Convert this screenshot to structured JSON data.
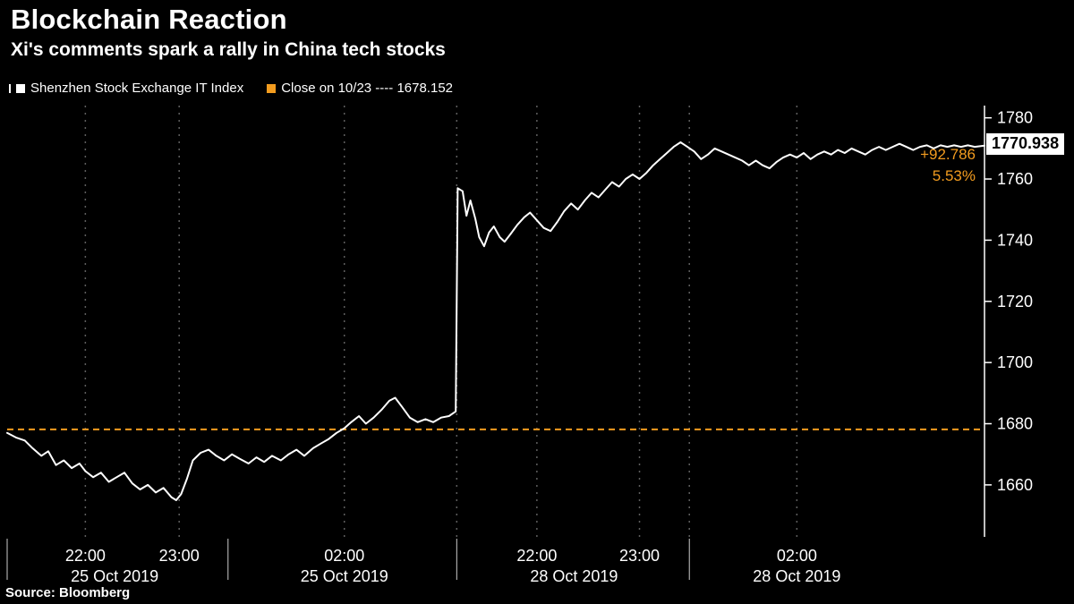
{
  "header": {
    "title": "Blockchain Reaction",
    "subtitle": "Xi's comments spark a rally in China tech stocks"
  },
  "legend": [
    {
      "label": "Shenzhen Stock Exchange IT Index",
      "color": "#ffffff"
    },
    {
      "label": "Close on 10/23 ---- 1678.152",
      "color": "#f39c1f"
    }
  ],
  "annotations": {
    "last_price": "1770.938",
    "change_abs": "+92.786",
    "change_pct": "5.53%"
  },
  "source": "Source: Bloomberg",
  "chart_data": {
    "type": "line",
    "title": "Blockchain Reaction",
    "subtitle": "Xi's comments spark a rally in China tech stocks",
    "series_name": "Shenzhen Stock Exchange IT Index",
    "last_value": 1770.938,
    "change_abs": 92.786,
    "change_pct": 5.53,
    "reference_line": {
      "label": "Close on 10/23",
      "value": 1678.152
    },
    "ylim": [
      1643,
      1784
    ],
    "yticks": [
      1660,
      1680,
      1700,
      1720,
      1740,
      1760,
      1780
    ],
    "grid": true,
    "legend_position": "top-left",
    "colors": {
      "line": "#ffffff",
      "reference": "#f39c1f",
      "grid": "#5f5f5f",
      "axis": "#ffffff"
    },
    "x_axis": {
      "gridlines": [
        8.0,
        17.6,
        34.5,
        46.0,
        54.2,
        64.7,
        69.8,
        80.8
      ],
      "separators": [
        0,
        22.6,
        46.0,
        69.8
      ],
      "time_labels": [
        {
          "x": 8.0,
          "label": "22:00"
        },
        {
          "x": 17.6,
          "label": "23:00"
        },
        {
          "x": 34.5,
          "label": "02:00"
        },
        {
          "x": 54.2,
          "label": "22:00"
        },
        {
          "x": 64.7,
          "label": "23:00"
        },
        {
          "x": 80.8,
          "label": "02:00"
        }
      ],
      "date_labels": [
        {
          "x": 11.0,
          "label": "25 Oct 2019"
        },
        {
          "x": 34.5,
          "label": "25 Oct 2019"
        },
        {
          "x": 58.0,
          "label": "28 Oct 2019"
        },
        {
          "x": 80.8,
          "label": "28 Oct 2019"
        }
      ]
    },
    "points": [
      [
        0,
        1677
      ],
      [
        0.9,
        1675.5
      ],
      [
        1.8,
        1674.5
      ],
      [
        2.6,
        1672
      ],
      [
        3.5,
        1669.5
      ],
      [
        4.2,
        1671
      ],
      [
        5,
        1666.5
      ],
      [
        5.8,
        1668
      ],
      [
        6.6,
        1665.5
      ],
      [
        7.4,
        1667
      ],
      [
        8,
        1664.5
      ],
      [
        8.8,
        1662.5
      ],
      [
        9.6,
        1664
      ],
      [
        10.4,
        1661
      ],
      [
        11.2,
        1662.5
      ],
      [
        12,
        1664
      ],
      [
        12.8,
        1660.5
      ],
      [
        13.6,
        1658.5
      ],
      [
        14.4,
        1660
      ],
      [
        15.2,
        1657.5
      ],
      [
        16,
        1659
      ],
      [
        16.8,
        1656
      ],
      [
        17.3,
        1655
      ],
      [
        17.8,
        1657
      ],
      [
        18.4,
        1662
      ],
      [
        19,
        1668
      ],
      [
        19.8,
        1670.5
      ],
      [
        20.6,
        1671.5
      ],
      [
        21.4,
        1669.5
      ],
      [
        22.2,
        1668
      ],
      [
        23,
        1670
      ],
      [
        23.8,
        1668.5
      ],
      [
        24.7,
        1667
      ],
      [
        25.5,
        1669
      ],
      [
        26.3,
        1667.5
      ],
      [
        27.1,
        1669.5
      ],
      [
        28,
        1668
      ],
      [
        28.8,
        1670
      ],
      [
        29.6,
        1671.5
      ],
      [
        30.4,
        1669.5
      ],
      [
        31.3,
        1672
      ],
      [
        32.1,
        1673.5
      ],
      [
        32.9,
        1675
      ],
      [
        33.7,
        1677
      ],
      [
        34.5,
        1678.5
      ],
      [
        35.2,
        1680.5
      ],
      [
        36,
        1682.5
      ],
      [
        36.7,
        1680
      ],
      [
        37.5,
        1682
      ],
      [
        38.3,
        1684.5
      ],
      [
        39.1,
        1687.5
      ],
      [
        39.7,
        1688.5
      ],
      [
        40.4,
        1685.5
      ],
      [
        41.2,
        1682
      ],
      [
        42,
        1680.5
      ],
      [
        42.8,
        1681.5
      ],
      [
        43.6,
        1680.5
      ],
      [
        44.4,
        1682
      ],
      [
        45.2,
        1682.5
      ],
      [
        45.9,
        1684
      ],
      [
        46.1,
        1757
      ],
      [
        46.6,
        1756
      ],
      [
        47,
        1748
      ],
      [
        47.4,
        1753
      ],
      [
        47.9,
        1747
      ],
      [
        48.3,
        1741
      ],
      [
        48.8,
        1738
      ],
      [
        49.3,
        1742.5
      ],
      [
        49.8,
        1744.5
      ],
      [
        50.4,
        1741
      ],
      [
        50.9,
        1739.5
      ],
      [
        51.5,
        1742
      ],
      [
        52.2,
        1745
      ],
      [
        52.9,
        1747.5
      ],
      [
        53.5,
        1749
      ],
      [
        54.2,
        1746.5
      ],
      [
        54.9,
        1744
      ],
      [
        55.6,
        1743
      ],
      [
        56.3,
        1746
      ],
      [
        57,
        1749.5
      ],
      [
        57.7,
        1752
      ],
      [
        58.4,
        1750
      ],
      [
        59.1,
        1753
      ],
      [
        59.8,
        1755.5
      ],
      [
        60.5,
        1754
      ],
      [
        61.2,
        1756.5
      ],
      [
        61.9,
        1759
      ],
      [
        62.6,
        1757.5
      ],
      [
        63.3,
        1760
      ],
      [
        64,
        1761.5
      ],
      [
        64.7,
        1760
      ],
      [
        65.4,
        1762
      ],
      [
        66.1,
        1764.5
      ],
      [
        66.8,
        1766.5
      ],
      [
        67.5,
        1768.5
      ],
      [
        68.2,
        1770.5
      ],
      [
        68.9,
        1772
      ],
      [
        69.6,
        1770.5
      ],
      [
        70.3,
        1769
      ],
      [
        71,
        1766.5
      ],
      [
        71.7,
        1768
      ],
      [
        72.4,
        1770
      ],
      [
        73.1,
        1769
      ],
      [
        73.8,
        1768
      ],
      [
        74.5,
        1767
      ],
      [
        75.2,
        1766
      ],
      [
        75.9,
        1764.5
      ],
      [
        76.6,
        1766
      ],
      [
        77.3,
        1764.5
      ],
      [
        78,
        1763.5
      ],
      [
        78.7,
        1765.5
      ],
      [
        79.4,
        1767
      ],
      [
        80.1,
        1768
      ],
      [
        80.8,
        1767
      ],
      [
        81.5,
        1768.5
      ],
      [
        82.2,
        1766.5
      ],
      [
        82.9,
        1768
      ],
      [
        83.6,
        1769
      ],
      [
        84.3,
        1768
      ],
      [
        85,
        1769.5
      ],
      [
        85.7,
        1768.5
      ],
      [
        86.4,
        1770
      ],
      [
        87.1,
        1769
      ],
      [
        87.8,
        1768
      ],
      [
        88.5,
        1769.5
      ],
      [
        89.2,
        1770.5
      ],
      [
        89.9,
        1769.5
      ],
      [
        90.6,
        1770.5
      ],
      [
        91.3,
        1771.5
      ],
      [
        92,
        1770.5
      ],
      [
        92.7,
        1769.5
      ],
      [
        93.4,
        1770.5
      ],
      [
        94.1,
        1771
      ],
      [
        94.8,
        1770
      ],
      [
        95.5,
        1771
      ],
      [
        96.2,
        1770.5
      ],
      [
        96.9,
        1771
      ],
      [
        97.6,
        1770.5
      ],
      [
        98.3,
        1771
      ],
      [
        99,
        1770.5
      ],
      [
        100,
        1770.9
      ]
    ]
  }
}
